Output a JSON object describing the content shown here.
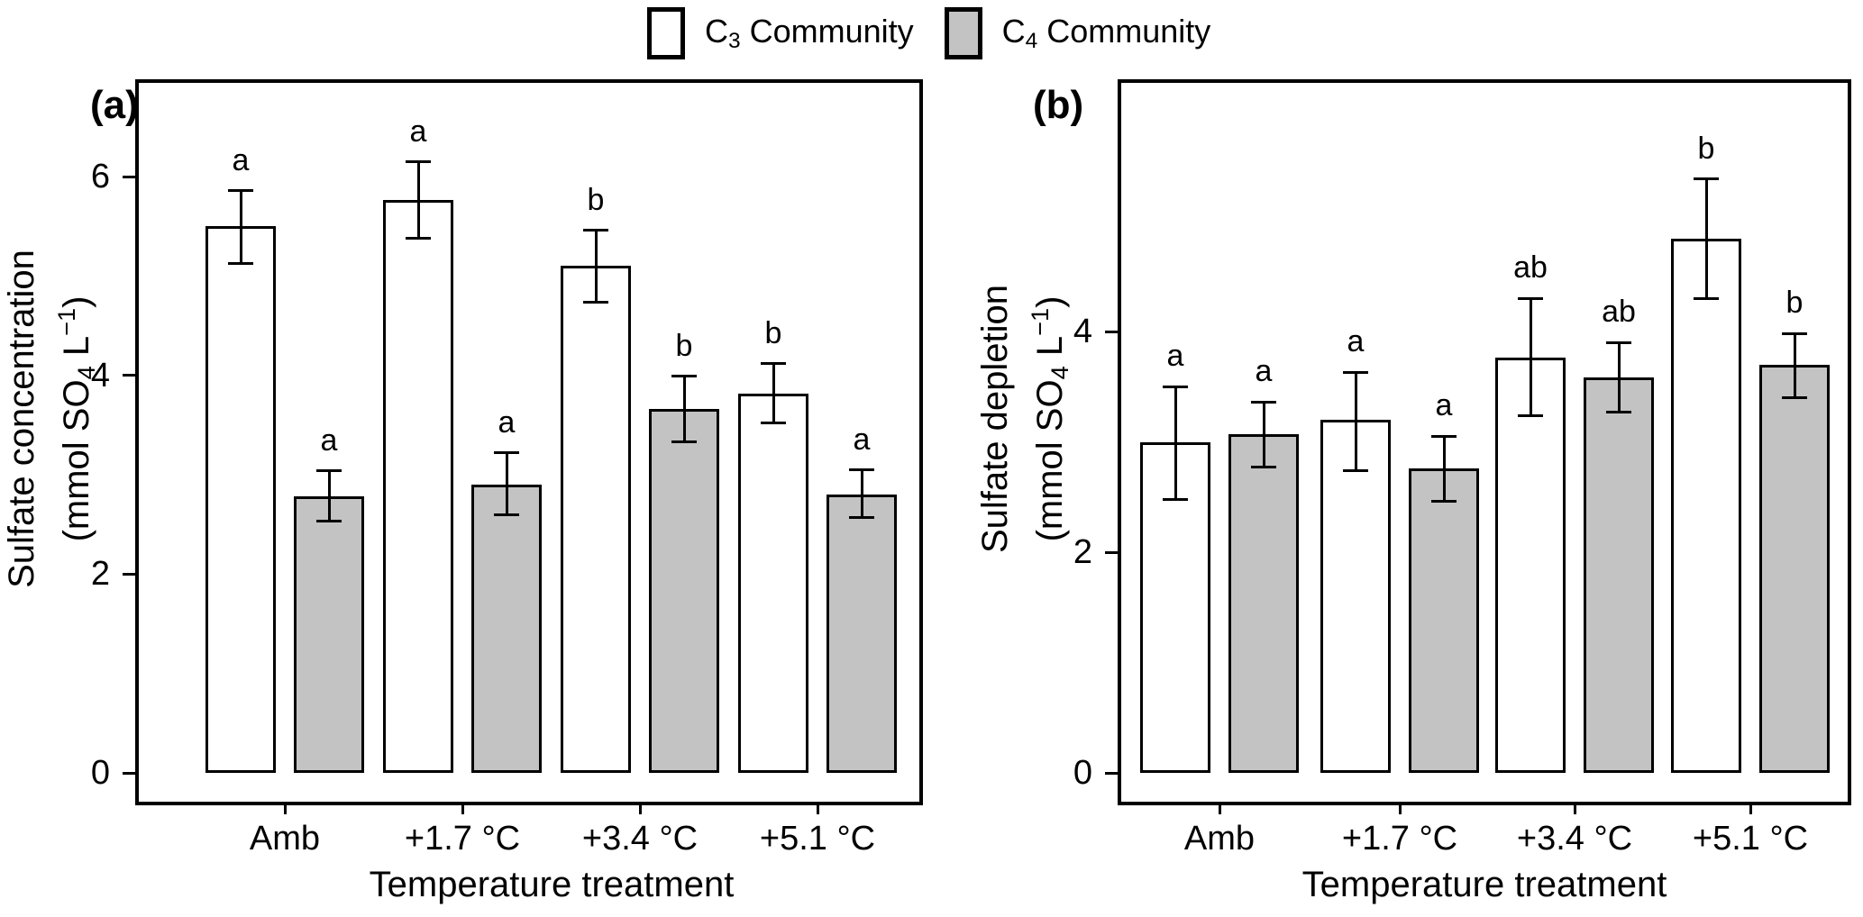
{
  "legend": {
    "items": [
      {
        "pre": "C",
        "sub": "3",
        "rest": " Community",
        "fill": "#ffffff"
      },
      {
        "pre": "C",
        "sub": "4",
        "rest": " Community",
        "fill": "#c3c3c3"
      }
    ]
  },
  "x_axis": {
    "title": "Temperature treatment"
  },
  "panels": [
    {
      "tag": "(a)",
      "y_title": "Sulfate concentration",
      "y_unit": {
        "pre": "(mmol SO",
        "sub": "4",
        "mid": " L",
        "sup": "−1",
        "post": ")"
      }
    },
    {
      "tag": "(b)",
      "y_title": "Sulfate depletion",
      "y_unit": {
        "pre": "(mmol SO",
        "sub": "4",
        "mid": " L",
        "sup": "−1",
        "post": ")"
      }
    }
  ],
  "chart_data": [
    {
      "type": "bar",
      "panel": "(a)",
      "title": "Sulfate concentration",
      "ylabel": "Sulfate concentration (mmol SO4 L-1)",
      "xlabel": "Temperature treatment",
      "categories": [
        "Amb",
        "+1.7 °C",
        "+3.4 °C",
        "+5.1 °C"
      ],
      "yticks": [
        0,
        2,
        4,
        6
      ],
      "ylim": [
        0,
        7.0
      ],
      "grid": false,
      "error_bars": true,
      "legend_position": "top",
      "series": [
        {
          "name": "C3 Community",
          "fill": "#ffffff",
          "values": [
            5.5,
            5.77,
            5.1,
            3.82
          ],
          "err_low": [
            5.13,
            5.38,
            4.74,
            3.52
          ],
          "err_high": [
            5.86,
            6.15,
            5.46,
            4.12
          ],
          "sig_letters": [
            "a",
            "a",
            "b",
            "b"
          ]
        },
        {
          "name": "C4 Community",
          "fill": "#c3c3c3",
          "values": [
            2.78,
            2.9,
            3.66,
            2.8
          ],
          "err_low": [
            2.53,
            2.6,
            3.33,
            2.57
          ],
          "err_high": [
            3.04,
            3.22,
            3.99,
            3.05
          ],
          "sig_letters": [
            "a",
            "a",
            "b",
            "a"
          ]
        }
      ]
    },
    {
      "type": "bar",
      "panel": "(b)",
      "title": "Sulfate depletion",
      "ylabel": "Sulfate depletion (mmol SO4 L-1)",
      "xlabel": "Temperature treatment",
      "categories": [
        "Amb",
        "+1.7 °C",
        "+3.4 °C",
        "+5.1 °C"
      ],
      "yticks": [
        0,
        2,
        4
      ],
      "ylim": [
        0,
        6.3
      ],
      "grid": false,
      "error_bars": true,
      "legend_position": "top",
      "series": [
        {
          "name": "C3 Community",
          "fill": "#ffffff",
          "values": [
            3.0,
            3.2,
            3.76,
            4.84
          ],
          "err_low": [
            2.48,
            2.74,
            3.24,
            4.3
          ],
          "err_high": [
            3.5,
            3.63,
            4.3,
            5.38
          ],
          "sig_letters": [
            "a",
            "a",
            "ab",
            "b"
          ]
        },
        {
          "name": "C4 Community",
          "fill": "#c3c3c3",
          "values": [
            3.07,
            2.76,
            3.58,
            3.7
          ],
          "err_low": [
            2.77,
            2.46,
            3.27,
            3.4
          ],
          "err_high": [
            3.36,
            3.05,
            3.9,
            3.98
          ],
          "sig_letters": [
            "a",
            "a",
            "ab",
            "b"
          ]
        }
      ]
    }
  ]
}
